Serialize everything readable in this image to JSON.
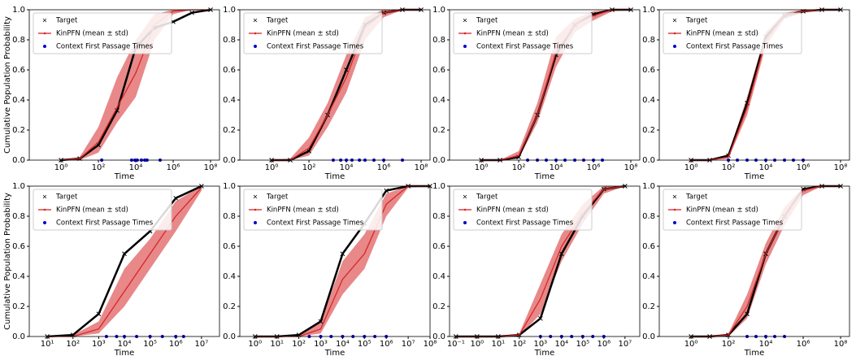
{
  "chart_data": [
    {
      "type": "line",
      "xlabel": "Time",
      "ylabel": "Cumulative Population Probability",
      "xscale": "log",
      "legend": "upper left",
      "xlim": [
        0.02,
        300000000
      ],
      "xticks": [
        {
          "value": 1,
          "label": "10⁰"
        },
        {
          "value": 100,
          "label": "10²"
        },
        {
          "value": 10000,
          "label": "10⁴"
        },
        {
          "value": 1000000,
          "label": "10⁶"
        },
        {
          "value": 100000000,
          "label": "10⁸"
        }
      ],
      "ylim": [
        0,
        1
      ],
      "yticks": [
        {
          "value": 0,
          "label": "0.0"
        },
        0.2,
        0.4,
        0.6,
        0.8,
        {
          "value": 1,
          "label": "1.0"
        }
      ],
      "x": [
        1,
        10,
        100,
        1000,
        10000,
        100000,
        1000000,
        10000000,
        100000000
      ],
      "series": [
        {
          "name": "Target",
          "color": "#000000",
          "values": [
            0,
            0.01,
            0.1,
            0.33,
            0.75,
            0.88,
            0.92,
            0.98,
            1
          ]
        },
        {
          "name": "KinPFN (mean ± std)",
          "color": "#d62728",
          "values": [
            0,
            0.01,
            0.12,
            0.35,
            0.58,
            0.9,
            0.99,
            1,
            1
          ],
          "lower": [
            0,
            0,
            0.05,
            0.25,
            0.42,
            0.8,
            0.97,
            1,
            1
          ],
          "upper": [
            0,
            0.02,
            0.22,
            0.55,
            0.8,
            0.97,
            1,
            1,
            1
          ]
        },
        {
          "name": "Context First Passage Times",
          "color": "#0000cc",
          "x": [
            150,
            6000,
            9000,
            12000,
            20000,
            30000,
            40000,
            200000
          ],
          "values": [
            0,
            0,
            0,
            0,
            0,
            0,
            0,
            0
          ]
        }
      ]
    },
    {
      "type": "line",
      "xlabel": "Time",
      "xscale": "log",
      "legend": "upper left",
      "xlim": [
        0.02,
        300000000
      ],
      "xticks": [
        {
          "value": 1,
          "label": "10⁰"
        },
        {
          "value": 100,
          "label": "10²"
        },
        {
          "value": 10000,
          "label": "10⁴"
        },
        {
          "value": 1000000,
          "label": "10⁶"
        },
        {
          "value": 100000000,
          "label": "10⁸"
        }
      ],
      "ylim": [
        0,
        1
      ],
      "yticks": [
        {
          "value": 0,
          "label": "0.0"
        },
        0.2,
        0.4,
        0.6,
        0.8,
        {
          "value": 1,
          "label": "1.0"
        }
      ],
      "x": [
        1,
        10,
        100,
        1000,
        10000,
        100000,
        1000000,
        10000000,
        100000000
      ],
      "series": [
        {
          "name": "Target",
          "color": "#000000",
          "values": [
            0,
            0,
            0.06,
            0.3,
            0.6,
            0.9,
            0.98,
            1,
            1
          ]
        },
        {
          "name": "KinPFN (mean ± std)",
          "color": "#d62728",
          "values": [
            0,
            0,
            0.08,
            0.3,
            0.55,
            0.88,
            0.98,
            1,
            1
          ],
          "lower": [
            0,
            0,
            0.03,
            0.22,
            0.45,
            0.8,
            0.95,
            1,
            1
          ],
          "upper": [
            0,
            0.01,
            0.15,
            0.38,
            0.7,
            0.95,
            1,
            1,
            1
          ]
        },
        {
          "name": "Context First Passage Times",
          "color": "#0000cc",
          "x": [
            2000,
            5000,
            10000,
            20000,
            50000,
            100000,
            300000,
            1000000,
            10000000
          ],
          "values": [
            0,
            0,
            0,
            0,
            0,
            0,
            0,
            0,
            0
          ]
        }
      ]
    },
    {
      "type": "line",
      "xlabel": "Time",
      "xscale": "log",
      "legend": "upper left",
      "xlim": [
        0.02,
        300000000
      ],
      "xticks": [
        {
          "value": 1,
          "label": "10⁰"
        },
        {
          "value": 100,
          "label": "10²"
        },
        {
          "value": 10000,
          "label": "10⁴"
        },
        {
          "value": 1000000,
          "label": "10⁶"
        },
        {
          "value": 100000000,
          "label": "10⁸"
        }
      ],
      "ylim": [
        0,
        1
      ],
      "yticks": [
        {
          "value": 0,
          "label": "0.0"
        },
        0.2,
        0.4,
        0.6,
        0.8,
        {
          "value": 1,
          "label": "1.0"
        }
      ],
      "x": [
        1,
        10,
        100,
        1000,
        10000,
        100000,
        1000000,
        10000000,
        100000000
      ],
      "series": [
        {
          "name": "Target",
          "color": "#000000",
          "values": [
            0,
            0,
            0.02,
            0.3,
            0.7,
            0.9,
            0.97,
            1,
            1
          ]
        },
        {
          "name": "KinPFN (mean ± std)",
          "color": "#d62728",
          "values": [
            0,
            0,
            0.03,
            0.3,
            0.72,
            0.9,
            0.96,
            1,
            1
          ],
          "lower": [
            0,
            0,
            0.01,
            0.25,
            0.62,
            0.85,
            0.93,
            0.99,
            1
          ],
          "upper": [
            0,
            0,
            0.06,
            0.38,
            0.82,
            0.94,
            0.99,
            1,
            1
          ]
        },
        {
          "name": "Context First Passage Times",
          "color": "#0000cc",
          "x": [
            300,
            1000,
            3000,
            10000,
            30000,
            100000,
            300000,
            1000000,
            3000000
          ],
          "values": [
            0,
            0,
            0,
            0,
            0,
            0,
            0,
            0,
            0
          ]
        }
      ]
    },
    {
      "type": "line",
      "xlabel": "Time",
      "xscale": "log",
      "legend": "upper left",
      "xlim": [
        0.02,
        300000000
      ],
      "xticks": [
        {
          "value": 1,
          "label": "10⁰"
        },
        {
          "value": 100,
          "label": "10²"
        },
        {
          "value": 10000,
          "label": "10⁴"
        },
        {
          "value": 1000000,
          "label": "10⁶"
        },
        {
          "value": 100000000,
          "label": "10⁸"
        }
      ],
      "ylim": [
        0,
        1
      ],
      "yticks": [
        {
          "value": 0,
          "label": "0.0"
        },
        0.2,
        0.4,
        0.6,
        0.8,
        {
          "value": 1,
          "label": "1.0"
        }
      ],
      "x": [
        1,
        10,
        100,
        1000,
        10000,
        100000,
        1000000,
        10000000,
        100000000
      ],
      "series": [
        {
          "name": "Target",
          "color": "#000000",
          "values": [
            0,
            0,
            0.03,
            0.38,
            0.82,
            0.96,
            0.99,
            1,
            1
          ]
        },
        {
          "name": "KinPFN (mean ± std)",
          "color": "#d62728",
          "values": [
            0,
            0,
            0.02,
            0.35,
            0.8,
            0.96,
            0.99,
            1,
            1
          ],
          "lower": [
            0,
            0,
            0.01,
            0.3,
            0.76,
            0.94,
            0.98,
            1,
            1
          ],
          "upper": [
            0,
            0,
            0.04,
            0.42,
            0.85,
            0.98,
            1,
            1,
            1
          ]
        },
        {
          "name": "Context First Passage Times",
          "color": "#0000cc",
          "x": [
            100,
            300,
            1000,
            3000,
            10000,
            30000,
            100000,
            300000,
            1000000
          ],
          "values": [
            0,
            0,
            0,
            0,
            0,
            0,
            0,
            0,
            0
          ]
        }
      ]
    },
    {
      "type": "line",
      "xlabel": "Time",
      "ylabel": "Cumulative Population Probability",
      "xscale": "log",
      "legend": "upper left",
      "xlim": [
        2,
        50000000
      ],
      "xticks": [
        {
          "value": 10,
          "label": "10¹"
        },
        {
          "value": 100,
          "label": "10²"
        },
        {
          "value": 1000,
          "label": "10³"
        },
        {
          "value": 10000,
          "label": "10⁴"
        },
        {
          "value": 100000,
          "label": "10⁵"
        },
        {
          "value": 1000000,
          "label": "10⁶"
        },
        {
          "value": 10000000,
          "label": "10⁷"
        }
      ],
      "ylim": [
        0,
        1
      ],
      "yticks": [
        {
          "value": 0,
          "label": "0.0"
        },
        0.2,
        0.4,
        0.6,
        0.8,
        {
          "value": 1,
          "label": "1.0"
        }
      ],
      "x": [
        10,
        100,
        1000,
        10000,
        100000,
        1000000,
        10000000
      ],
      "series": [
        {
          "name": "Target",
          "color": "#000000",
          "values": [
            0,
            0.01,
            0.15,
            0.55,
            0.7,
            0.92,
            1
          ]
        },
        {
          "name": "KinPFN (mean ± std)",
          "color": "#d62728",
          "values": [
            0,
            0,
            0.05,
            0.3,
            0.55,
            0.8,
            0.99
          ],
          "lower": [
            0,
            0,
            0.02,
            0.2,
            0.45,
            0.7,
            0.97
          ],
          "upper": [
            0,
            0.01,
            0.1,
            0.45,
            0.65,
            0.9,
            1
          ]
        },
        {
          "name": "Context First Passage Times",
          "color": "#0000cc",
          "x": [
            2000,
            5000,
            10000,
            30000,
            100000,
            300000,
            1000000,
            2000000
          ],
          "values": [
            0,
            0,
            0,
            0,
            0,
            0,
            0,
            0
          ]
        }
      ]
    },
    {
      "type": "line",
      "xlabel": "Time",
      "xscale": "log",
      "legend": "upper left",
      "xlim": [
        0.2,
        100000000
      ],
      "xticks": [
        {
          "value": 1,
          "label": "10⁰"
        },
        {
          "value": 10,
          "label": "10¹"
        },
        {
          "value": 100,
          "label": "10²"
        },
        {
          "value": 1000,
          "label": "10³"
        },
        {
          "value": 10000,
          "label": "10⁴"
        },
        {
          "value": 100000,
          "label": "10⁵"
        },
        {
          "value": 1000000,
          "label": "10⁶"
        },
        {
          "value": 10000000,
          "label": "10⁷"
        },
        {
          "value": 100000000,
          "label": "10⁸"
        }
      ],
      "ylim": [
        0,
        1
      ],
      "yticks": [
        {
          "value": 0,
          "label": "0.0"
        },
        0.2,
        0.4,
        0.6,
        0.8,
        {
          "value": 1,
          "label": "1.0"
        }
      ],
      "x": [
        1,
        10,
        100,
        1000,
        10000,
        100000,
        1000000,
        10000000,
        100000000
      ],
      "series": [
        {
          "name": "Target",
          "color": "#000000",
          "values": [
            0,
            0,
            0.01,
            0.1,
            0.55,
            0.75,
            0.97,
            1,
            1
          ]
        },
        {
          "name": "KinPFN (mean ± std)",
          "color": "#d62728",
          "values": [
            0,
            0,
            0,
            0.05,
            0.38,
            0.55,
            0.88,
            1,
            1
          ],
          "lower": [
            0,
            0,
            0,
            0.02,
            0.28,
            0.45,
            0.8,
            0.99,
            1
          ],
          "upper": [
            0,
            0,
            0.01,
            0.1,
            0.5,
            0.68,
            0.95,
            1,
            1
          ]
        },
        {
          "name": "Context First Passage Times",
          "color": "#0000cc",
          "x": [
            300,
            1000,
            3000,
            10000,
            30000,
            100000,
            300000,
            1000000
          ],
          "values": [
            0,
            0,
            0,
            0,
            0,
            0,
            0,
            0
          ]
        }
      ]
    },
    {
      "type": "line",
      "xlabel": "Time",
      "xscale": "log",
      "legend": "upper left",
      "xlim": [
        0.05,
        50000000
      ],
      "xticks": [
        {
          "value": 0.1,
          "label": "10⁻¹"
        },
        {
          "value": 1,
          "label": "10⁰"
        },
        {
          "value": 10,
          "label": "10¹"
        },
        {
          "value": 100,
          "label": "10²"
        },
        {
          "value": 1000,
          "label": "10³"
        },
        {
          "value": 10000,
          "label": "10⁴"
        },
        {
          "value": 100000,
          "label": "10⁵"
        },
        {
          "value": 1000000,
          "label": "10⁶"
        },
        {
          "value": 10000000,
          "label": "10⁷"
        }
      ],
      "ylim": [
        0,
        1
      ],
      "yticks": [
        {
          "value": 0,
          "label": "0.0"
        },
        0.2,
        0.4,
        0.6,
        0.8,
        {
          "value": 1,
          "label": "1.0"
        }
      ],
      "x": [
        0.1,
        1,
        10,
        100,
        1000,
        10000,
        100000,
        1000000,
        10000000
      ],
      "series": [
        {
          "name": "Target",
          "color": "#000000",
          "values": [
            0,
            0,
            0,
            0.01,
            0.12,
            0.55,
            0.8,
            0.98,
            1
          ]
        },
        {
          "name": "KinPFN (mean ± std)",
          "color": "#d62728",
          "values": [
            0,
            0,
            0,
            0.01,
            0.25,
            0.6,
            0.82,
            0.98,
            1
          ],
          "lower": [
            0,
            0,
            0,
            0,
            0.15,
            0.5,
            0.75,
            0.95,
            1
          ],
          "upper": [
            0,
            0,
            0,
            0.02,
            0.35,
            0.68,
            0.88,
            1,
            1
          ]
        },
        {
          "name": "Context First Passage Times",
          "color": "#0000cc",
          "x": [
            1000,
            3000,
            10000,
            30000,
            100000,
            300000,
            1000000
          ],
          "values": [
            0,
            0,
            0,
            0,
            0,
            0,
            0
          ]
        }
      ]
    },
    {
      "type": "line",
      "xlabel": "Time",
      "xscale": "log",
      "legend": "upper left",
      "xlim": [
        0.02,
        300000000
      ],
      "xticks": [
        {
          "value": 1,
          "label": "10⁰"
        },
        {
          "value": 100,
          "label": "10²"
        },
        {
          "value": 10000,
          "label": "10⁴"
        },
        {
          "value": 1000000,
          "label": "10⁶"
        },
        {
          "value": 100000000,
          "label": "10⁸"
        }
      ],
      "ylim": [
        0,
        1
      ],
      "yticks": [
        {
          "value": 0,
          "label": "0.0"
        },
        0.2,
        0.4,
        0.6,
        0.8,
        {
          "value": 1,
          "label": "1.0"
        }
      ],
      "x": [
        1,
        10,
        100,
        1000,
        10000,
        100000,
        1000000,
        10000000,
        100000000
      ],
      "series": [
        {
          "name": "Target",
          "color": "#000000",
          "values": [
            0,
            0,
            0.01,
            0.15,
            0.55,
            0.8,
            0.98,
            1,
            1
          ]
        },
        {
          "name": "KinPFN (mean ± std)",
          "color": "#d62728",
          "values": [
            0,
            0,
            0.01,
            0.2,
            0.55,
            0.8,
            0.97,
            1,
            1
          ],
          "lower": [
            0,
            0,
            0,
            0.12,
            0.48,
            0.74,
            0.94,
            1,
            1
          ],
          "upper": [
            0,
            0,
            0.02,
            0.28,
            0.62,
            0.86,
            0.99,
            1,
            1
          ]
        },
        {
          "name": "Context First Passage Times",
          "color": "#0000cc",
          "x": [
            1000,
            3000,
            10000,
            30000,
            100000
          ],
          "values": [
            0,
            0,
            0,
            0,
            0
          ]
        }
      ]
    }
  ]
}
